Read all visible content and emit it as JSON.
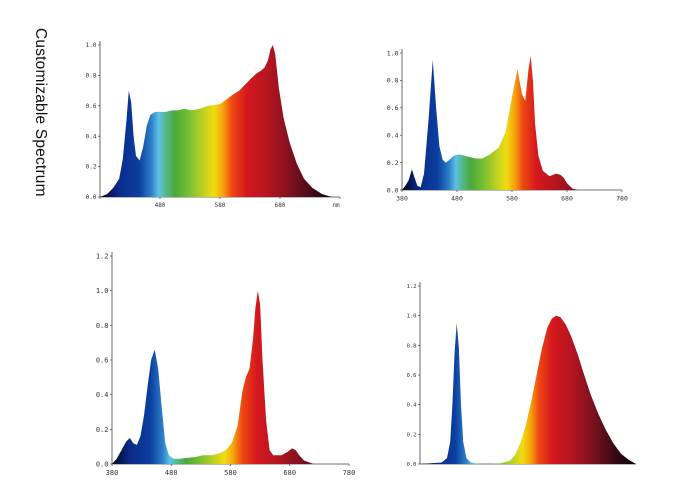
{
  "side_title": "Customizable   Spectrum",
  "chart_data": [
    {
      "type": "area",
      "title": "",
      "xlabel": "",
      "ylabel": "",
      "xlim": [
        380,
        780
      ],
      "ylim": [
        0,
        1.0
      ],
      "yticks": [
        "0.0",
        "0.2",
        "0.4",
        "0.6",
        "0.8",
        "1.0"
      ],
      "xticks": [
        "380",
        "480",
        "580",
        "680",
        "780"
      ],
      "xtick_labels_printed": [
        "480",
        "580",
        "680",
        "nm"
      ],
      "series": [
        {
          "x": [
            380,
            392,
            402,
            412,
            418,
            424,
            428,
            432,
            436,
            440,
            446,
            452,
            458,
            464,
            472,
            480,
            490,
            500,
            510,
            520,
            532,
            546,
            560,
            580,
            600,
            612,
            622,
            632,
            640,
            648,
            654,
            660,
            664,
            668,
            672,
            678,
            686,
            696,
            708,
            720,
            734,
            750,
            762,
            770
          ],
          "y": [
            0.0,
            0.02,
            0.06,
            0.12,
            0.25,
            0.5,
            0.7,
            0.62,
            0.4,
            0.27,
            0.24,
            0.33,
            0.47,
            0.54,
            0.56,
            0.56,
            0.56,
            0.57,
            0.57,
            0.58,
            0.57,
            0.58,
            0.6,
            0.61,
            0.67,
            0.7,
            0.74,
            0.78,
            0.81,
            0.83,
            0.85,
            0.9,
            0.97,
            1.0,
            0.94,
            0.72,
            0.52,
            0.36,
            0.22,
            0.12,
            0.06,
            0.02,
            0.005,
            0.0
          ]
        }
      ]
    },
    {
      "type": "area",
      "title": "",
      "xlabel": "",
      "ylabel": "",
      "xlim": [
        380,
        780
      ],
      "ylim": [
        0,
        1.0
      ],
      "yticks": [
        "0.0",
        "0.2",
        "0.4",
        "0.6",
        "0.8",
        "1.0"
      ],
      "xticks": [
        "380",
        "480",
        "580",
        "680",
        "780"
      ],
      "xtick_labels_printed": [
        "380",
        "480",
        "580",
        "680",
        "780"
      ],
      "series": [
        {
          "x": [
            380,
            386,
            392,
            398,
            402,
            408,
            414,
            420,
            428,
            436,
            442,
            448,
            454,
            460,
            466,
            474,
            484,
            494,
            504,
            514,
            526,
            540,
            556,
            568,
            582,
            590,
            598,
            604,
            610,
            614,
            618,
            622,
            628,
            636,
            648,
            660,
            668,
            674,
            680,
            690,
            700
          ],
          "y": [
            0.0,
            0.03,
            0.07,
            0.15,
            0.1,
            0.03,
            0.02,
            0.12,
            0.5,
            0.95,
            0.6,
            0.32,
            0.22,
            0.2,
            0.22,
            0.25,
            0.26,
            0.25,
            0.24,
            0.23,
            0.23,
            0.26,
            0.31,
            0.42,
            0.72,
            0.88,
            0.7,
            0.65,
            0.88,
            0.98,
            0.8,
            0.48,
            0.25,
            0.14,
            0.1,
            0.12,
            0.11,
            0.09,
            0.05,
            0.01,
            0.0
          ]
        }
      ]
    },
    {
      "type": "area",
      "title": "",
      "xlabel": "",
      "ylabel": "",
      "xlim": [
        380,
        780
      ],
      "ylim": [
        0,
        1.2
      ],
      "yticks": [
        "0.0",
        "0.2",
        "0.4",
        "0.6",
        "0.8",
        "1.0",
        "1.2"
      ],
      "xticks": [
        "380",
        "480",
        "580",
        "680",
        "780"
      ],
      "xtick_labels_printed": [
        "380",
        "480",
        "580",
        "680",
        "780"
      ],
      "series": [
        {
          "x": [
            380,
            388,
            396,
            404,
            410,
            416,
            422,
            428,
            434,
            440,
            446,
            452,
            458,
            464,
            470,
            476,
            484,
            494,
            506,
            520,
            534,
            548,
            560,
            572,
            582,
            592,
            600,
            606,
            612,
            618,
            622,
            626,
            630,
            634,
            640,
            646,
            652,
            658,
            666,
            676,
            684,
            690,
            696,
            704,
            712,
            720
          ],
          "y": [
            0.0,
            0.03,
            0.08,
            0.13,
            0.15,
            0.12,
            0.11,
            0.16,
            0.28,
            0.45,
            0.6,
            0.66,
            0.55,
            0.32,
            0.12,
            0.05,
            0.03,
            0.03,
            0.035,
            0.04,
            0.05,
            0.05,
            0.06,
            0.08,
            0.12,
            0.22,
            0.42,
            0.5,
            0.55,
            0.72,
            0.9,
            1.0,
            0.92,
            0.6,
            0.25,
            0.08,
            0.05,
            0.05,
            0.05,
            0.07,
            0.09,
            0.08,
            0.05,
            0.02,
            0.01,
            0.0
          ]
        }
      ]
    },
    {
      "type": "area",
      "title": "",
      "xlabel": "",
      "ylabel": "",
      "xlim": [
        380,
        780
      ],
      "ylim": [
        0,
        1.2
      ],
      "yticks": [
        "0.0",
        "0.2",
        "0.4",
        "0.6",
        "0.8",
        "1.0",
        "1.2"
      ],
      "xticks": [],
      "xtick_labels_printed": [],
      "series": [
        {
          "x": [
            380,
            400,
            420,
            430,
            436,
            440,
            444,
            448,
            452,
            456,
            460,
            466,
            474,
            490,
            510,
            530,
            546,
            556,
            566,
            576,
            586,
            596,
            606,
            616,
            624,
            632,
            640,
            650,
            660,
            672,
            684,
            696,
            710,
            724,
            738,
            752,
            766,
            780
          ],
          "y": [
            0.0,
            0.005,
            0.01,
            0.04,
            0.15,
            0.4,
            0.75,
            0.95,
            0.78,
            0.4,
            0.15,
            0.04,
            0.01,
            0.0,
            0.0,
            0.005,
            0.02,
            0.06,
            0.14,
            0.26,
            0.42,
            0.6,
            0.78,
            0.92,
            0.98,
            1.0,
            0.99,
            0.94,
            0.86,
            0.74,
            0.6,
            0.47,
            0.34,
            0.23,
            0.14,
            0.07,
            0.03,
            0.0
          ]
        }
      ]
    }
  ]
}
